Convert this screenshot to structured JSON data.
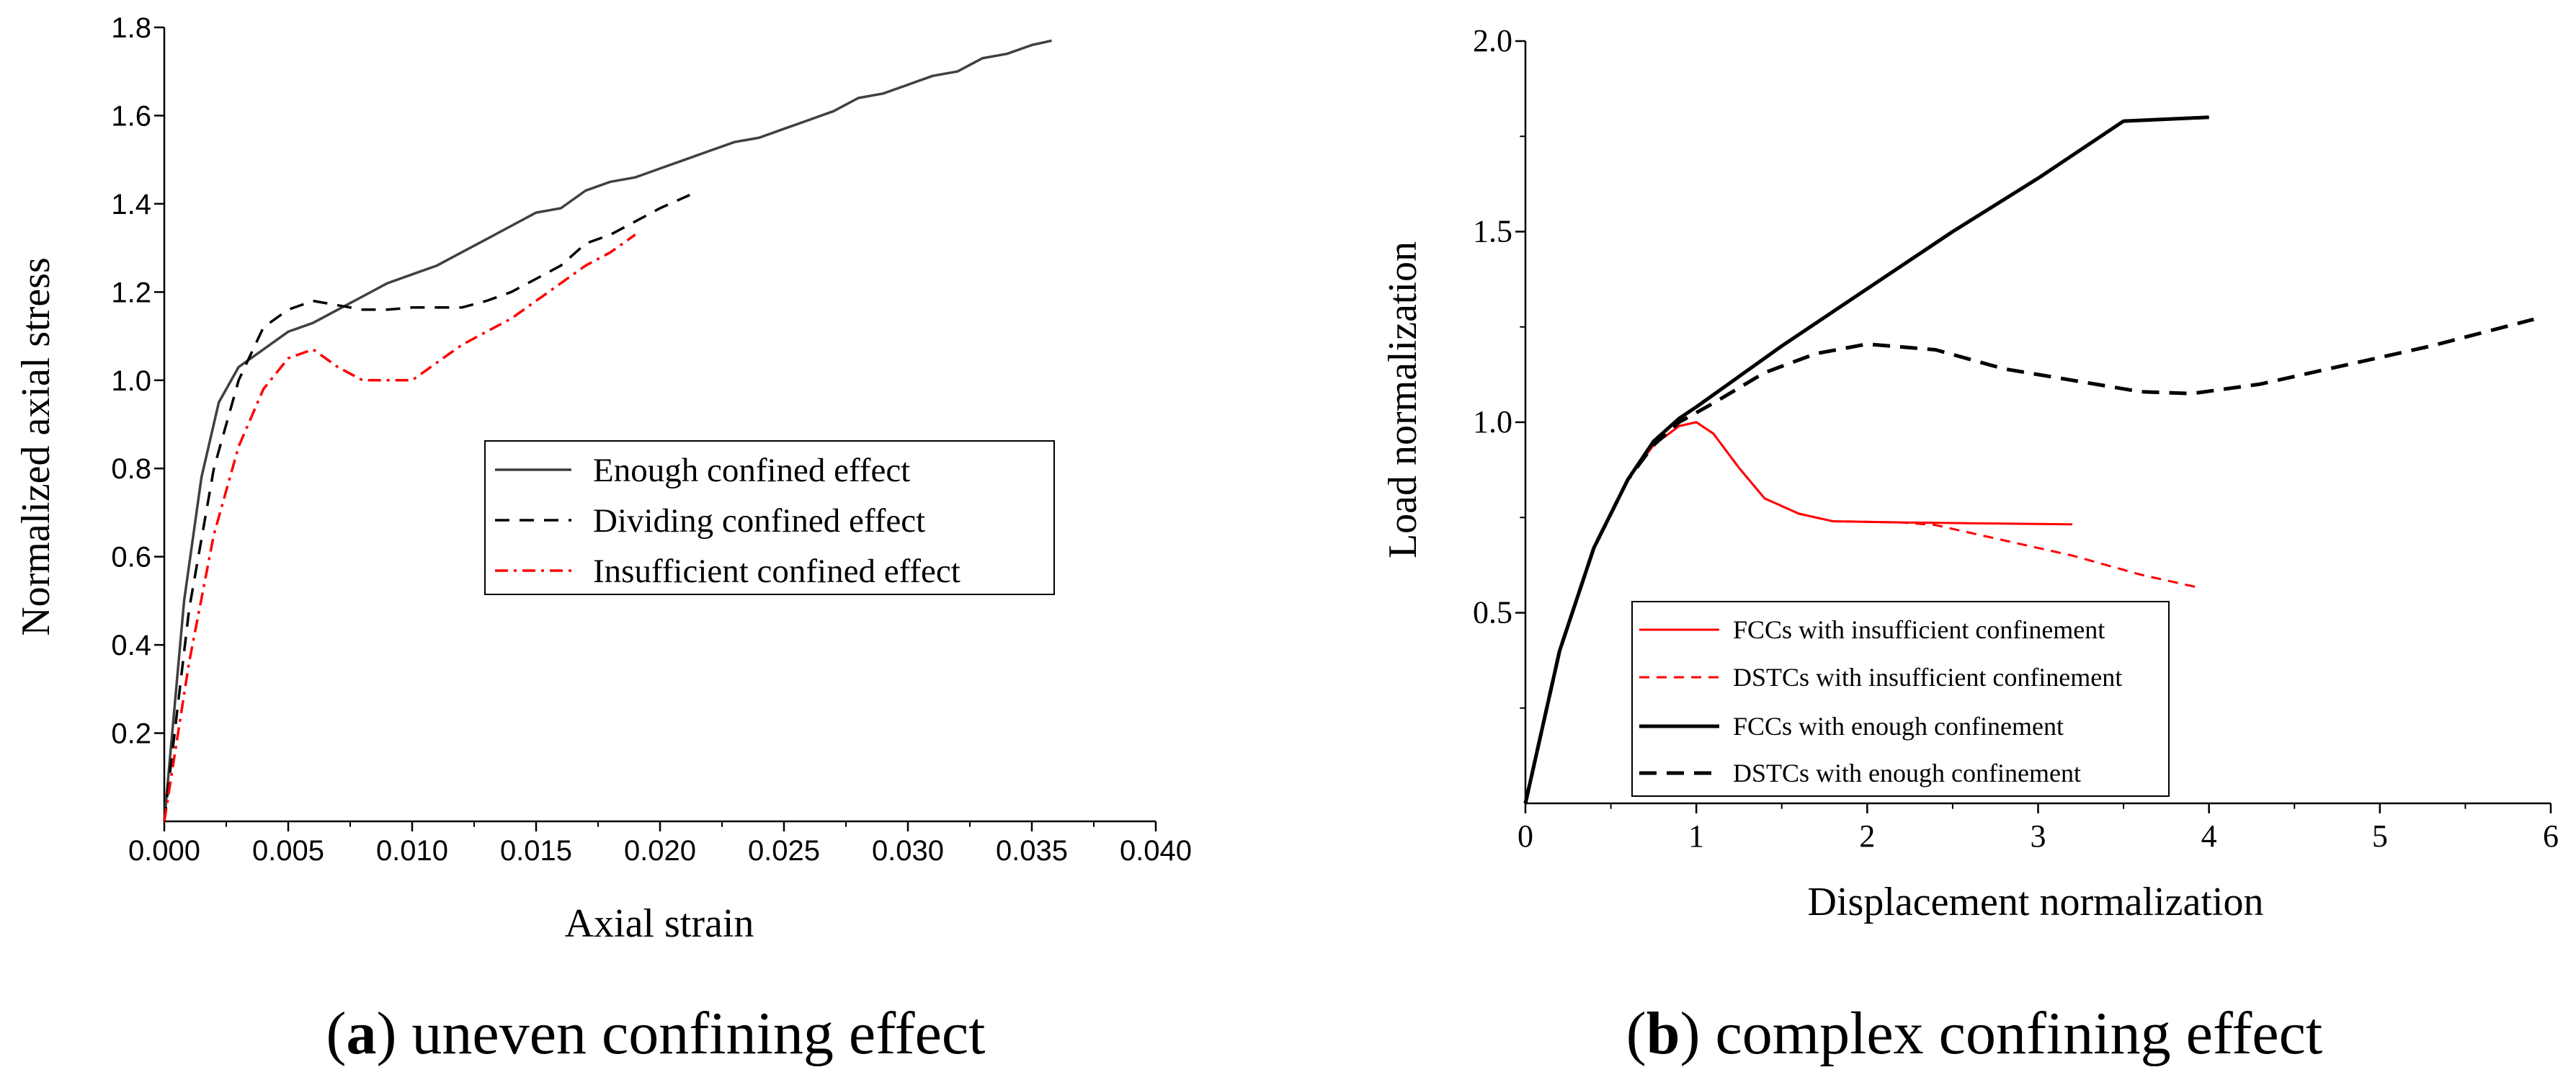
{
  "chart_data": [
    {
      "id": "a",
      "type": "line",
      "xlabel": "Axial strain",
      "ylabel": "Normalized axial stress",
      "xlim": [
        0,
        0.04
      ],
      "ylim": [
        0,
        1.8
      ],
      "xticks": [
        "0.000",
        "0.005",
        "0.010",
        "0.015",
        "0.020",
        "0.025",
        "0.030",
        "0.035",
        "0.040"
      ],
      "yticks": [
        "0.2",
        "0.4",
        "0.6",
        "0.8",
        "1.0",
        "1.2",
        "1.4",
        "1.6",
        "1.8"
      ],
      "caption": {
        "letter": "a",
        "text": ") uneven confining effect"
      },
      "legend_position": "center-right",
      "series": [
        {
          "name": "Enough confined effect",
          "color": "#404040",
          "dash": "solid",
          "points": [
            [
              0,
              0
            ],
            [
              0.0008,
              0.5
            ],
            [
              0.0015,
              0.78
            ],
            [
              0.0022,
              0.95
            ],
            [
              0.003,
              1.03
            ],
            [
              0.004,
              1.07
            ],
            [
              0.005,
              1.11
            ],
            [
              0.006,
              1.13
            ],
            [
              0.007,
              1.16
            ],
            [
              0.008,
              1.19
            ],
            [
              0.009,
              1.22
            ],
            [
              0.01,
              1.24
            ],
            [
              0.011,
              1.26
            ],
            [
              0.012,
              1.29
            ],
            [
              0.013,
              1.32
            ],
            [
              0.014,
              1.35
            ],
            [
              0.015,
              1.38
            ],
            [
              0.016,
              1.39
            ],
            [
              0.017,
              1.43
            ],
            [
              0.018,
              1.45
            ],
            [
              0.019,
              1.46
            ],
            [
              0.02,
              1.48
            ],
            [
              0.021,
              1.5
            ],
            [
              0.022,
              1.52
            ],
            [
              0.023,
              1.54
            ],
            [
              0.024,
              1.55
            ],
            [
              0.025,
              1.57
            ],
            [
              0.026,
              1.59
            ],
            [
              0.027,
              1.61
            ],
            [
              0.028,
              1.64
            ],
            [
              0.029,
              1.65
            ],
            [
              0.03,
              1.67
            ],
            [
              0.031,
              1.69
            ],
            [
              0.032,
              1.7
            ],
            [
              0.033,
              1.73
            ],
            [
              0.034,
              1.74
            ],
            [
              0.035,
              1.76
            ],
            [
              0.0358,
              1.77
            ]
          ]
        },
        {
          "name": "Dividing confined effect",
          "color": "#000000",
          "dash": "dashed",
          "points": [
            [
              0,
              0
            ],
            [
              0.001,
              0.48
            ],
            [
              0.002,
              0.8
            ],
            [
              0.003,
              1.0
            ],
            [
              0.004,
              1.12
            ],
            [
              0.005,
              1.16
            ],
            [
              0.006,
              1.18
            ],
            [
              0.007,
              1.17
            ],
            [
              0.008,
              1.16
            ],
            [
              0.009,
              1.16
            ],
            [
              0.01,
              1.165
            ],
            [
              0.011,
              1.165
            ],
            [
              0.012,
              1.165
            ],
            [
              0.013,
              1.18
            ],
            [
              0.014,
              1.2
            ],
            [
              0.015,
              1.23
            ],
            [
              0.016,
              1.26
            ],
            [
              0.017,
              1.31
            ],
            [
              0.018,
              1.33
            ],
            [
              0.019,
              1.36
            ],
            [
              0.02,
              1.39
            ],
            [
              0.0212,
              1.42
            ]
          ]
        },
        {
          "name": "Insufficient confined effect",
          "color": "#ff0000",
          "dash": "dashdot",
          "points": [
            [
              0,
              0
            ],
            [
              0.001,
              0.36
            ],
            [
              0.002,
              0.65
            ],
            [
              0.003,
              0.85
            ],
            [
              0.004,
              0.98
            ],
            [
              0.005,
              1.05
            ],
            [
              0.006,
              1.07
            ],
            [
              0.007,
              1.03
            ],
            [
              0.008,
              1.0
            ],
            [
              0.009,
              1.0
            ],
            [
              0.01,
              1.0
            ],
            [
              0.011,
              1.04
            ],
            [
              0.012,
              1.08
            ],
            [
              0.013,
              1.11
            ],
            [
              0.014,
              1.14
            ],
            [
              0.015,
              1.18
            ],
            [
              0.016,
              1.22
            ],
            [
              0.017,
              1.26
            ],
            [
              0.018,
              1.29
            ],
            [
              0.019,
              1.33
            ]
          ]
        }
      ]
    },
    {
      "id": "b",
      "type": "line",
      "xlabel": "Displacement normalization",
      "ylabel": "Load normalization",
      "xlim": [
        0,
        6
      ],
      "ylim": [
        0,
        2.0
      ],
      "xticks": [
        "0",
        "1",
        "2",
        "3",
        "4",
        "5",
        "6"
      ],
      "yticks": [
        "0.5",
        "1.0",
        "1.5",
        "2.0"
      ],
      "caption": {
        "letter": "b",
        "text": ") complex confining effect"
      },
      "legend_position": "bottom-left",
      "series": [
        {
          "name": "FCCs with insufficient confinement",
          "color": "#ff0000",
          "dash": "solid",
          "points": [
            [
              0,
              0
            ],
            [
              0.2,
              0.4
            ],
            [
              0.4,
              0.67
            ],
            [
              0.6,
              0.85
            ],
            [
              0.75,
              0.94
            ],
            [
              0.9,
              0.99
            ],
            [
              1.0,
              1.0
            ],
            [
              1.1,
              0.97
            ],
            [
              1.25,
              0.88
            ],
            [
              1.4,
              0.8
            ],
            [
              1.6,
              0.76
            ],
            [
              1.8,
              0.74
            ],
            [
              2.2,
              0.737
            ],
            [
              2.6,
              0.735
            ],
            [
              3.0,
              0.733
            ],
            [
              3.2,
              0.732
            ]
          ]
        },
        {
          "name": "DSTCs with insufficient confinement",
          "color": "#ff0000",
          "dash": "dashed",
          "points": [
            [
              0,
              0
            ],
            [
              0.2,
              0.4
            ],
            [
              0.4,
              0.67
            ],
            [
              0.6,
              0.85
            ],
            [
              0.75,
              0.94
            ],
            [
              0.9,
              0.99
            ],
            [
              1.0,
              1.0
            ],
            [
              1.1,
              0.97
            ],
            [
              1.25,
              0.88
            ],
            [
              1.4,
              0.8
            ],
            [
              1.6,
              0.76
            ],
            [
              1.8,
              0.74
            ],
            [
              2.2,
              0.737
            ],
            [
              2.4,
              0.73
            ],
            [
              2.8,
              0.69
            ],
            [
              3.2,
              0.65
            ],
            [
              3.6,
              0.6
            ],
            [
              3.95,
              0.565
            ]
          ]
        },
        {
          "name": "FCCs with enough confinement",
          "color": "#000000",
          "dash": "solid",
          "points": [
            [
              0,
              0
            ],
            [
              0.2,
              0.4
            ],
            [
              0.4,
              0.67
            ],
            [
              0.6,
              0.85
            ],
            [
              0.75,
              0.95
            ],
            [
              0.9,
              1.01
            ],
            [
              1.0,
              1.04
            ],
            [
              1.5,
              1.2
            ],
            [
              2.0,
              1.35
            ],
            [
              2.5,
              1.5
            ],
            [
              3.0,
              1.64
            ],
            [
              3.5,
              1.79
            ],
            [
              4.0,
              1.8
            ]
          ]
        },
        {
          "name": "DSTCs with enough confinement",
          "color": "#000000",
          "dash": "dashed",
          "points": [
            [
              0,
              0
            ],
            [
              0.2,
              0.4
            ],
            [
              0.4,
              0.67
            ],
            [
              0.6,
              0.85
            ],
            [
              0.75,
              0.94
            ],
            [
              0.9,
              1.0
            ],
            [
              1.1,
              1.05
            ],
            [
              1.4,
              1.13
            ],
            [
              1.7,
              1.18
            ],
            [
              2.0,
              1.205
            ],
            [
              2.4,
              1.19
            ],
            [
              2.8,
              1.14
            ],
            [
              3.2,
              1.11
            ],
            [
              3.6,
              1.08
            ],
            [
              3.9,
              1.075
            ],
            [
              4.3,
              1.1
            ],
            [
              4.8,
              1.15
            ],
            [
              5.3,
              1.2
            ],
            [
              5.9,
              1.27
            ]
          ]
        }
      ]
    }
  ]
}
